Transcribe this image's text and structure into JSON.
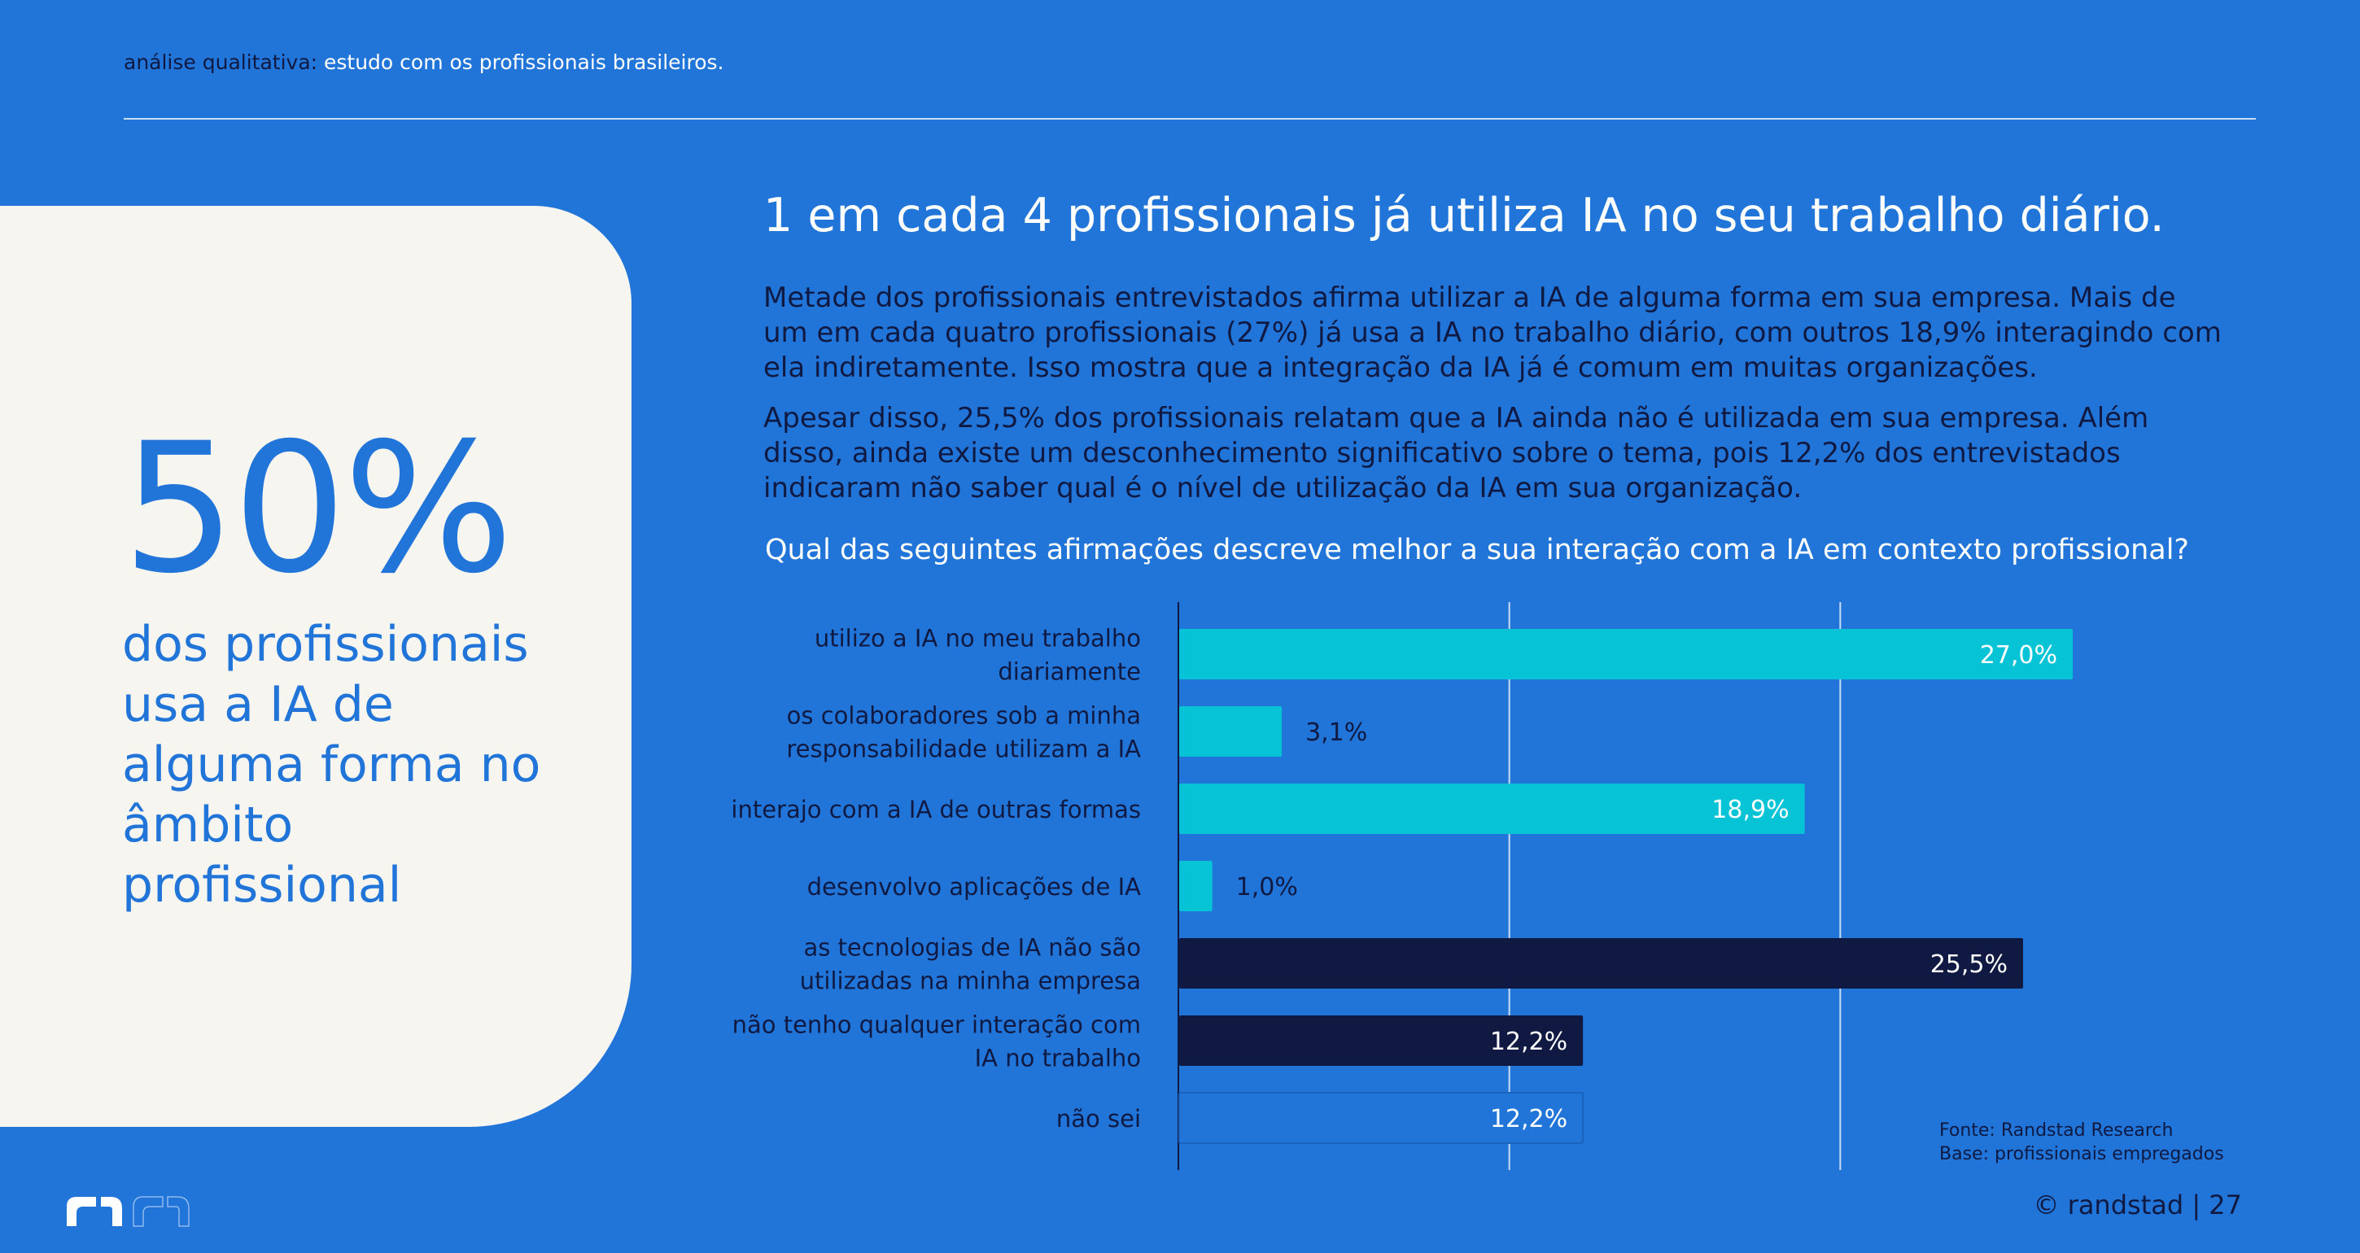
{
  "header": {
    "keyword": "análise qualitativa:",
    "rest": " estudo com os profissionais brasileiros."
  },
  "highlight": {
    "value": "50%",
    "caption": "dos profissionais usa a IA de alguma forma no âmbito profissional"
  },
  "headline": "1 em cada 4 profissionais já utiliza IA no seu trabalho diário.",
  "paragraphs": [
    "Metade dos profissionais entrevistados afirma utilizar a IA de alguma forma em sua empresa. Mais de um em cada quatro profissionais (27%) já usa a IA no trabalho diário, com outros 18,9% interagindo com ela indiretamente. Isso mostra que a integração da IA já é comum em muitas organizações.",
    "Apesar disso, 25,5% dos profissionais relatam que a IA ainda não é utilizada em sua empresa. Além disso, ainda existe um desconhecimento significativo sobre o tema, pois 12,2% dos entrevistados indicaram não saber qual é o nível de utilização da IA em sua organização."
  ],
  "question": "Qual das seguintes afirmações descreve melhor a sua interação com a IA em contexto profissional?",
  "chart_data": {
    "type": "bar",
    "orientation": "horizontal",
    "categories": [
      [
        "utilizo a IA no meu trabalho",
        "diariamente"
      ],
      [
        "os colaboradores sob a minha",
        "responsabilidade utilizam a IA"
      ],
      [
        "interajo com a IA de outras formas"
      ],
      [
        "desenvolvo aplicações de IA"
      ],
      [
        "as tecnologias de IA não são",
        "utilizadas na minha empresa"
      ],
      [
        "não tenho qualquer interação com",
        "IA no trabalho"
      ],
      [
        "não sei"
      ]
    ],
    "values": [
      27.0,
      3.1,
      18.9,
      1.0,
      25.5,
      12.2,
      12.2
    ],
    "labels": [
      "27,0%",
      "3,1%",
      "18,9%",
      "1,0%",
      "25,5%",
      "12,2%",
      "12,2%"
    ],
    "bar_colors": [
      "#06c3d6",
      "#06c3d6",
      "#06c3d6",
      "#06c3d6",
      "#0f1941",
      "#0f1941",
      "#2175d9"
    ],
    "label_inside": [
      true,
      false,
      true,
      false,
      true,
      true,
      true
    ],
    "xlim": [
      0,
      30
    ],
    "gridlines": [
      10,
      20
    ],
    "grid": true,
    "xaxis_visible": false
  },
  "colors": {
    "background": "#2175d9",
    "card": "#f7f5f0",
    "navy": "#0f1941",
    "cyan": "#06c3d6",
    "white": "#ffffff"
  },
  "source": {
    "line1": "Fonte: Randstad Research",
    "line2": "Base: profissionais empregados"
  },
  "footer": "© randstad | 27"
}
